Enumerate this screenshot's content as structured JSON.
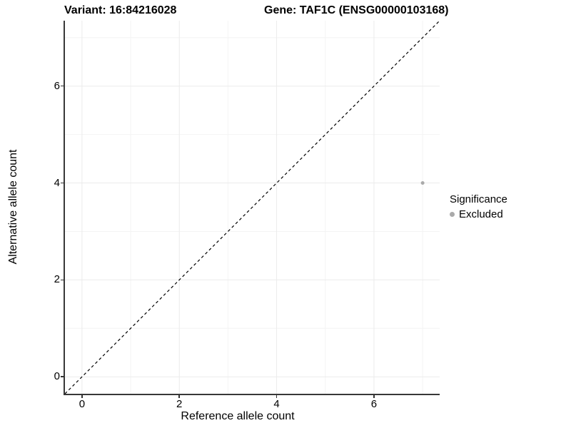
{
  "chart_data": {
    "type": "scatter",
    "title_left": "Variant: 16:84216028",
    "title_right": "Gene: TAF1C (ENSG00000103168)",
    "xlabel": "Reference allele count",
    "ylabel": "Alternative allele count",
    "xlim": [
      0,
      7
    ],
    "ylim": [
      0,
      7
    ],
    "x_ticks": [
      0,
      2,
      4,
      6
    ],
    "y_ticks": [
      0,
      2,
      4,
      6
    ],
    "x_minor_ticks": [
      1,
      3,
      5,
      7
    ],
    "y_minor_ticks": [
      1,
      3,
      5,
      7
    ],
    "grid": true,
    "points": [
      {
        "x": 7,
        "y": 4,
        "significance": "Excluded",
        "color": "#aaaaaa"
      }
    ],
    "reference_line": {
      "type": "identity",
      "style": "dashed",
      "color": "#000000"
    },
    "legend": {
      "title": "Significance",
      "position": "right",
      "items": [
        {
          "label": "Excluded",
          "color": "#aaaaaa"
        }
      ]
    }
  },
  "colors": {
    "background": "#ffffff",
    "axis_line": "#383838",
    "tick_mark": "#333333",
    "grid_major": "#ebebeb",
    "grid_minor": "#f4f4f4",
    "text": "#000000",
    "point_excluded": "#aaaaaa"
  }
}
